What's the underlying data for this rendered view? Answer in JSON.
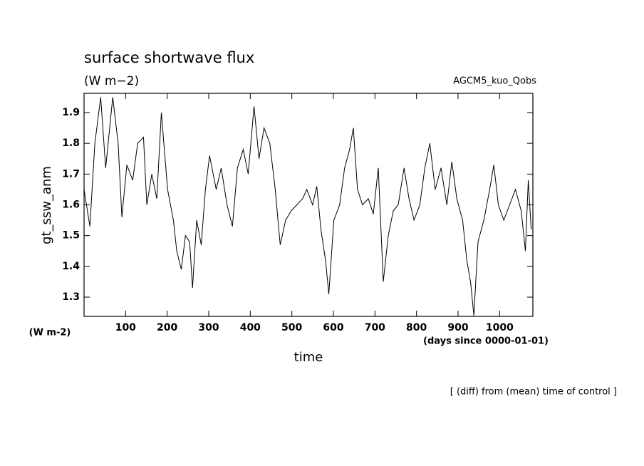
{
  "chart_data": {
    "type": "line",
    "title": "surface shortwave flux",
    "subtitle": "(W m−2)",
    "annotation": "AGCM5_kuo_Qobs",
    "y_label": "gt_ssw_anm",
    "y_unit": "(W m-2)",
    "x_unit": "(days since 0000-01-01)",
    "x_label": "time",
    "footer": "[ (diff) from (mean) time of control ]",
    "x": [
      0,
      14,
      26,
      40,
      52,
      69,
      82,
      91,
      103,
      117,
      129,
      143,
      151,
      163,
      175,
      186,
      201,
      215,
      223,
      234,
      244,
      254,
      261,
      271,
      282,
      292,
      302,
      318,
      330,
      344,
      357,
      369,
      383,
      395,
      409,
      421,
      433,
      447,
      460,
      472,
      485,
      498,
      512,
      526,
      536,
      550,
      560,
      570,
      581,
      589,
      601,
      615,
      627,
      639,
      648,
      658,
      670,
      684,
      696,
      708,
      720,
      732,
      744,
      756,
      770,
      782,
      794,
      808,
      820,
      832,
      845,
      859,
      873,
      885,
      897,
      911,
      921,
      930,
      938,
      948,
      962,
      976,
      986,
      997,
      1010,
      1024,
      1038,
      1052,
      1062,
      1069,
      1076
    ],
    "series": [
      {
        "name": "gt_ssw_anm",
        "color": "#000000",
        "values": [
          1.65,
          1.53,
          1.8,
          1.95,
          1.72,
          1.95,
          1.8,
          1.56,
          1.73,
          1.68,
          1.8,
          1.82,
          1.6,
          1.7,
          1.62,
          1.9,
          1.65,
          1.55,
          1.45,
          1.39,
          1.5,
          1.48,
          1.33,
          1.55,
          1.47,
          1.65,
          1.76,
          1.65,
          1.72,
          1.6,
          1.53,
          1.72,
          1.78,
          1.7,
          1.92,
          1.75,
          1.85,
          1.8,
          1.65,
          1.47,
          1.55,
          1.58,
          1.6,
          1.62,
          1.65,
          1.6,
          1.66,
          1.52,
          1.42,
          1.31,
          1.55,
          1.6,
          1.72,
          1.78,
          1.85,
          1.65,
          1.6,
          1.62,
          1.57,
          1.72,
          1.35,
          1.5,
          1.58,
          1.6,
          1.72,
          1.62,
          1.55,
          1.6,
          1.72,
          1.8,
          1.65,
          1.72,
          1.6,
          1.74,
          1.62,
          1.55,
          1.42,
          1.35,
          1.24,
          1.48,
          1.55,
          1.65,
          1.73,
          1.6,
          1.55,
          1.6,
          1.65,
          1.58,
          1.45,
          1.68,
          1.52
        ]
      }
    ],
    "xlim": [
      0,
      1080
    ],
    "ylim": [
      1.2375,
      1.9625
    ],
    "xticks": [
      100,
      200,
      300,
      400,
      500,
      600,
      700,
      800,
      900,
      1000
    ],
    "yticks": [
      1.3,
      1.4,
      1.5,
      1.6,
      1.7,
      1.8,
      1.9
    ]
  }
}
